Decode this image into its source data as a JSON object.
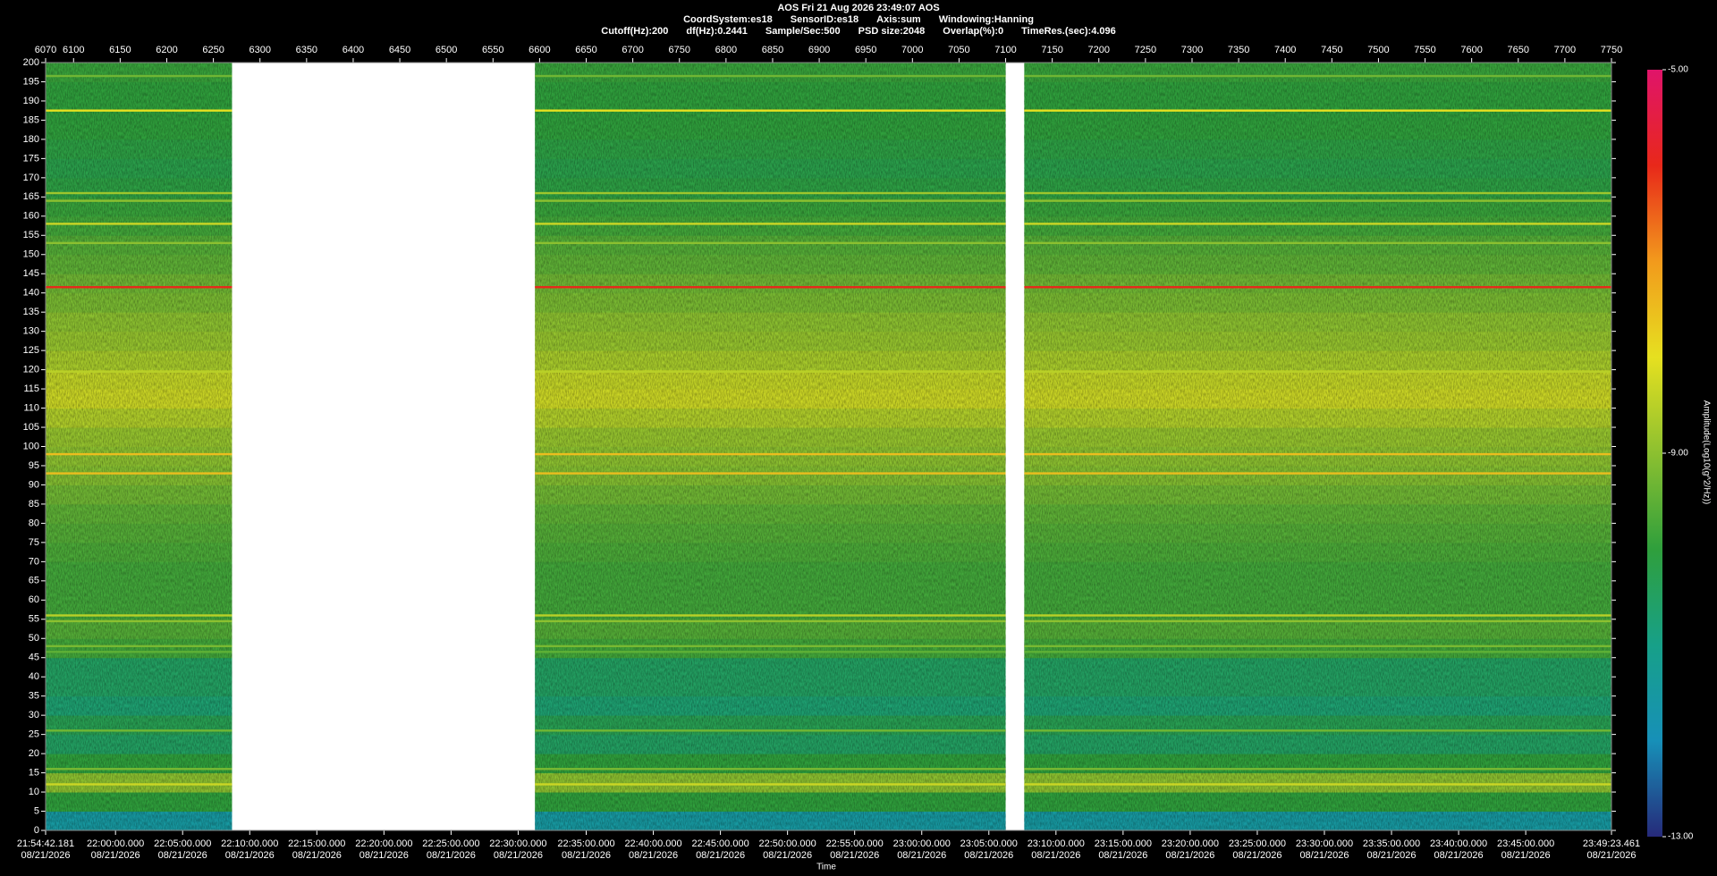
{
  "chart_data": {
    "type": "spectrogram",
    "title": "AOS  Fri 21 Aug 2026 23:49:07  AOS",
    "subtitle_fields": [
      [
        "CoordSystem:es18",
        "SensorID:es18",
        "Axis:sum",
        "Windowing:Hanning"
      ],
      [
        "Cutoff(Hz):200",
        "df(Hz):0.2441",
        "Sample/Sec:500",
        "PSD size:2048",
        "Overlap(%):0",
        "TimeRes.(sec):4.096"
      ]
    ],
    "x_label": "Time",
    "colorbar_label": "Amplitude(Log10(g^2/Hz))",
    "xlim": [
      6070,
      7750
    ],
    "xticks": [
      6070,
      6100,
      6150,
      6200,
      6250,
      6300,
      6350,
      6400,
      6450,
      6500,
      6550,
      6600,
      6650,
      6700,
      6750,
      6800,
      6850,
      6900,
      6950,
      7000,
      7050,
      7100,
      7150,
      7200,
      7250,
      7300,
      7350,
      7400,
      7450,
      7500,
      7550,
      7600,
      7650,
      7700,
      7750
    ],
    "x2ticks": [
      {
        "value": 6070,
        "label": "21:54:42.181",
        "date": "08/21/2026"
      },
      {
        "value": 6145,
        "label": "22:00:00.000",
        "date": "08/21/2026"
      },
      {
        "value": 6217,
        "label": "22:05:00.000",
        "date": "08/21/2026"
      },
      {
        "value": 6289,
        "label": "22:10:00.000",
        "date": "08/21/2026"
      },
      {
        "value": 6361,
        "label": "22:15:00.000",
        "date": "08/21/2026"
      },
      {
        "value": 6433,
        "label": "22:20:00.000",
        "date": "08/21/2026"
      },
      {
        "value": 6505,
        "label": "22:25:00.000",
        "date": "08/21/2026"
      },
      {
        "value": 6577,
        "label": "22:30:00.000",
        "date": "08/21/2026"
      },
      {
        "value": 6650,
        "label": "22:35:00.000",
        "date": "08/21/2026"
      },
      {
        "value": 6722,
        "label": "22:40:00.000",
        "date": "08/21/2026"
      },
      {
        "value": 6794,
        "label": "22:45:00.000",
        "date": "08/21/2026"
      },
      {
        "value": 6866,
        "label": "22:50:00.000",
        "date": "08/21/2026"
      },
      {
        "value": 6938,
        "label": "22:55:00.000",
        "date": "08/21/2026"
      },
      {
        "value": 7010,
        "label": "23:00:00.000",
        "date": "08/21/2026"
      },
      {
        "value": 7082,
        "label": "23:05:00.000",
        "date": "08/21/2026"
      },
      {
        "value": 7154,
        "label": "23:10:00.000",
        "date": "08/21/2026"
      },
      {
        "value": 7226,
        "label": "23:15:00.000",
        "date": "08/21/2026"
      },
      {
        "value": 7298,
        "label": "23:20:00.000",
        "date": "08/21/2026"
      },
      {
        "value": 7370,
        "label": "23:25:00.000",
        "date": "08/21/2026"
      },
      {
        "value": 7442,
        "label": "23:30:00.000",
        "date": "08/21/2026"
      },
      {
        "value": 7514,
        "label": "23:35:00.000",
        "date": "08/21/2026"
      },
      {
        "value": 7586,
        "label": "23:40:00.000",
        "date": "08/21/2026"
      },
      {
        "value": 7658,
        "label": "23:45:00.000",
        "date": "08/21/2026"
      },
      {
        "value": 7750,
        "label": "23:49:23.461",
        "date": "08/21/2026"
      }
    ],
    "ylim": [
      0,
      200
    ],
    "yticks": [
      0,
      5,
      10,
      15,
      20,
      25,
      30,
      35,
      40,
      45,
      50,
      55,
      60,
      65,
      70,
      75,
      80,
      85,
      90,
      95,
      100,
      105,
      110,
      115,
      120,
      125,
      130,
      135,
      140,
      145,
      150,
      155,
      160,
      165,
      170,
      175,
      180,
      185,
      190,
      195,
      200
    ],
    "clim": [
      -13,
      -5
    ],
    "cticks": [
      {
        "value": -13,
        "label": "-13.00"
      },
      {
        "value": -9,
        "label": "-9.00"
      },
      {
        "value": -5,
        "label": "-5.00"
      }
    ],
    "colormap": [
      "#262a7a",
      "#1790b8",
      "#17a088",
      "#2f9f3c",
      "#8cc030",
      "#e6e020",
      "#f29a1c",
      "#e8281a",
      "#e0146a"
    ],
    "segments": [
      [
        6070,
        6270
      ],
      [
        6595,
        7100
      ],
      [
        7120,
        7750
      ]
    ],
    "bands": {
      "edges": [
        0,
        5,
        10,
        15,
        20,
        25,
        30,
        35,
        40,
        45,
        50,
        55,
        60,
        65,
        70,
        75,
        80,
        85,
        90,
        95,
        100,
        105,
        110,
        115,
        120,
        125,
        130,
        135,
        140,
        145,
        150,
        155,
        160,
        165,
        170,
        175,
        180,
        185,
        190,
        195,
        200
      ],
      "values": [
        -11.5,
        -10,
        -9,
        -10,
        -10.5,
        -10.3,
        -10.7,
        -10.5,
        -10.5,
        -9.8,
        -9.6,
        -9.8,
        -9.8,
        -9.8,
        -9.7,
        -9.6,
        -9.5,
        -9.3,
        -9.1,
        -9,
        -8.9,
        -8.6,
        -8.3,
        -8.4,
        -8.7,
        -8.9,
        -9,
        -9.2,
        -9.3,
        -9.5,
        -9.6,
        -9.8,
        -9.9,
        -10.1,
        -10.2,
        -10.1,
        -10,
        -10,
        -10,
        -9.9
      ]
    },
    "tones": {
      "freqs": [
        196.5,
        187.5,
        166,
        164,
        158,
        153,
        141.5,
        119.5,
        98,
        93,
        56,
        54.5,
        48,
        46.5,
        26,
        16,
        12
      ],
      "values": [
        -9.3,
        -8,
        -8.8,
        -9,
        -8.3,
        -9,
        -6,
        -8.5,
        -7.5,
        -7.5,
        -8.5,
        -9,
        -9.2,
        -9.5,
        -9.3,
        -9.2,
        -8.3
      ]
    }
  }
}
